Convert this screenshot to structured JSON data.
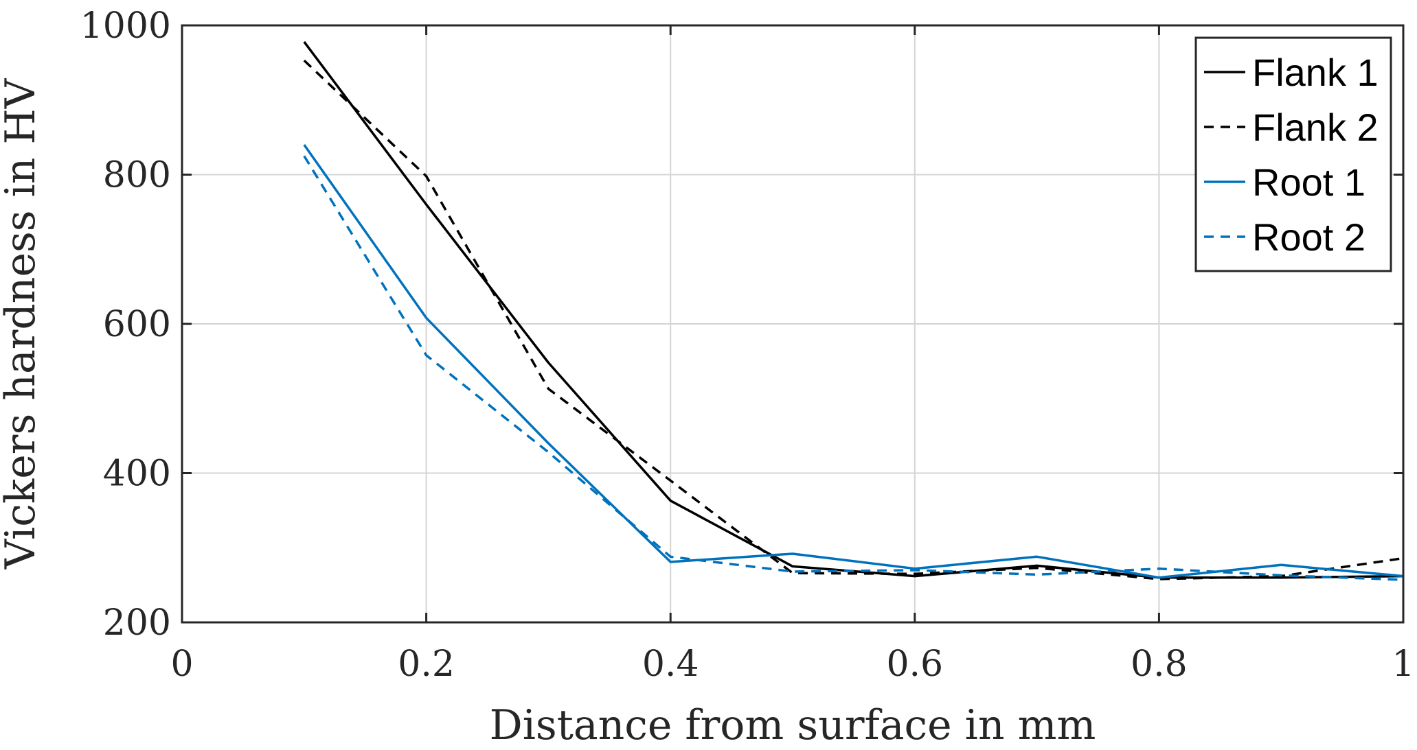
{
  "chart_data": {
    "type": "line",
    "title": "",
    "xlabel": "Distance from surface in mm",
    "ylabel": "Vickers hardness in HV",
    "xlim": [
      0,
      1
    ],
    "ylim": [
      200,
      1000
    ],
    "grid": true,
    "xticks": [
      0,
      0.2,
      0.4,
      0.6,
      0.8,
      1
    ],
    "xtick_labels": [
      "0",
      "0.2",
      "0.4",
      "0.6",
      "0.8",
      "1"
    ],
    "yticks": [
      200,
      400,
      600,
      800,
      1000
    ],
    "ytick_labels": [
      "200",
      "400",
      "600",
      "800",
      "1000"
    ],
    "legend_position": "top-right",
    "x": [
      0.1,
      0.2,
      0.3,
      0.4,
      0.5,
      0.6,
      0.7,
      0.8,
      0.9,
      1.0
    ],
    "series": [
      {
        "name": "Flank 1",
        "color": "#000000",
        "style": "solid",
        "values": [
          978,
          760,
          548,
          363,
          275,
          262,
          276,
          260,
          260,
          262
        ]
      },
      {
        "name": "Flank 2",
        "color": "#000000",
        "style": "dashed",
        "values": [
          953,
          798,
          513,
          390,
          266,
          265,
          273,
          258,
          262,
          286
        ]
      },
      {
        "name": "Root 1",
        "color": "#0072BD",
        "style": "solid",
        "values": [
          840,
          608,
          440,
          281,
          292,
          272,
          288,
          260,
          277,
          262
        ]
      },
      {
        "name": "Root 2",
        "color": "#0072BD",
        "style": "dashed",
        "values": [
          825,
          558,
          428,
          288,
          268,
          270,
          264,
          272,
          263,
          257
        ]
      }
    ]
  }
}
